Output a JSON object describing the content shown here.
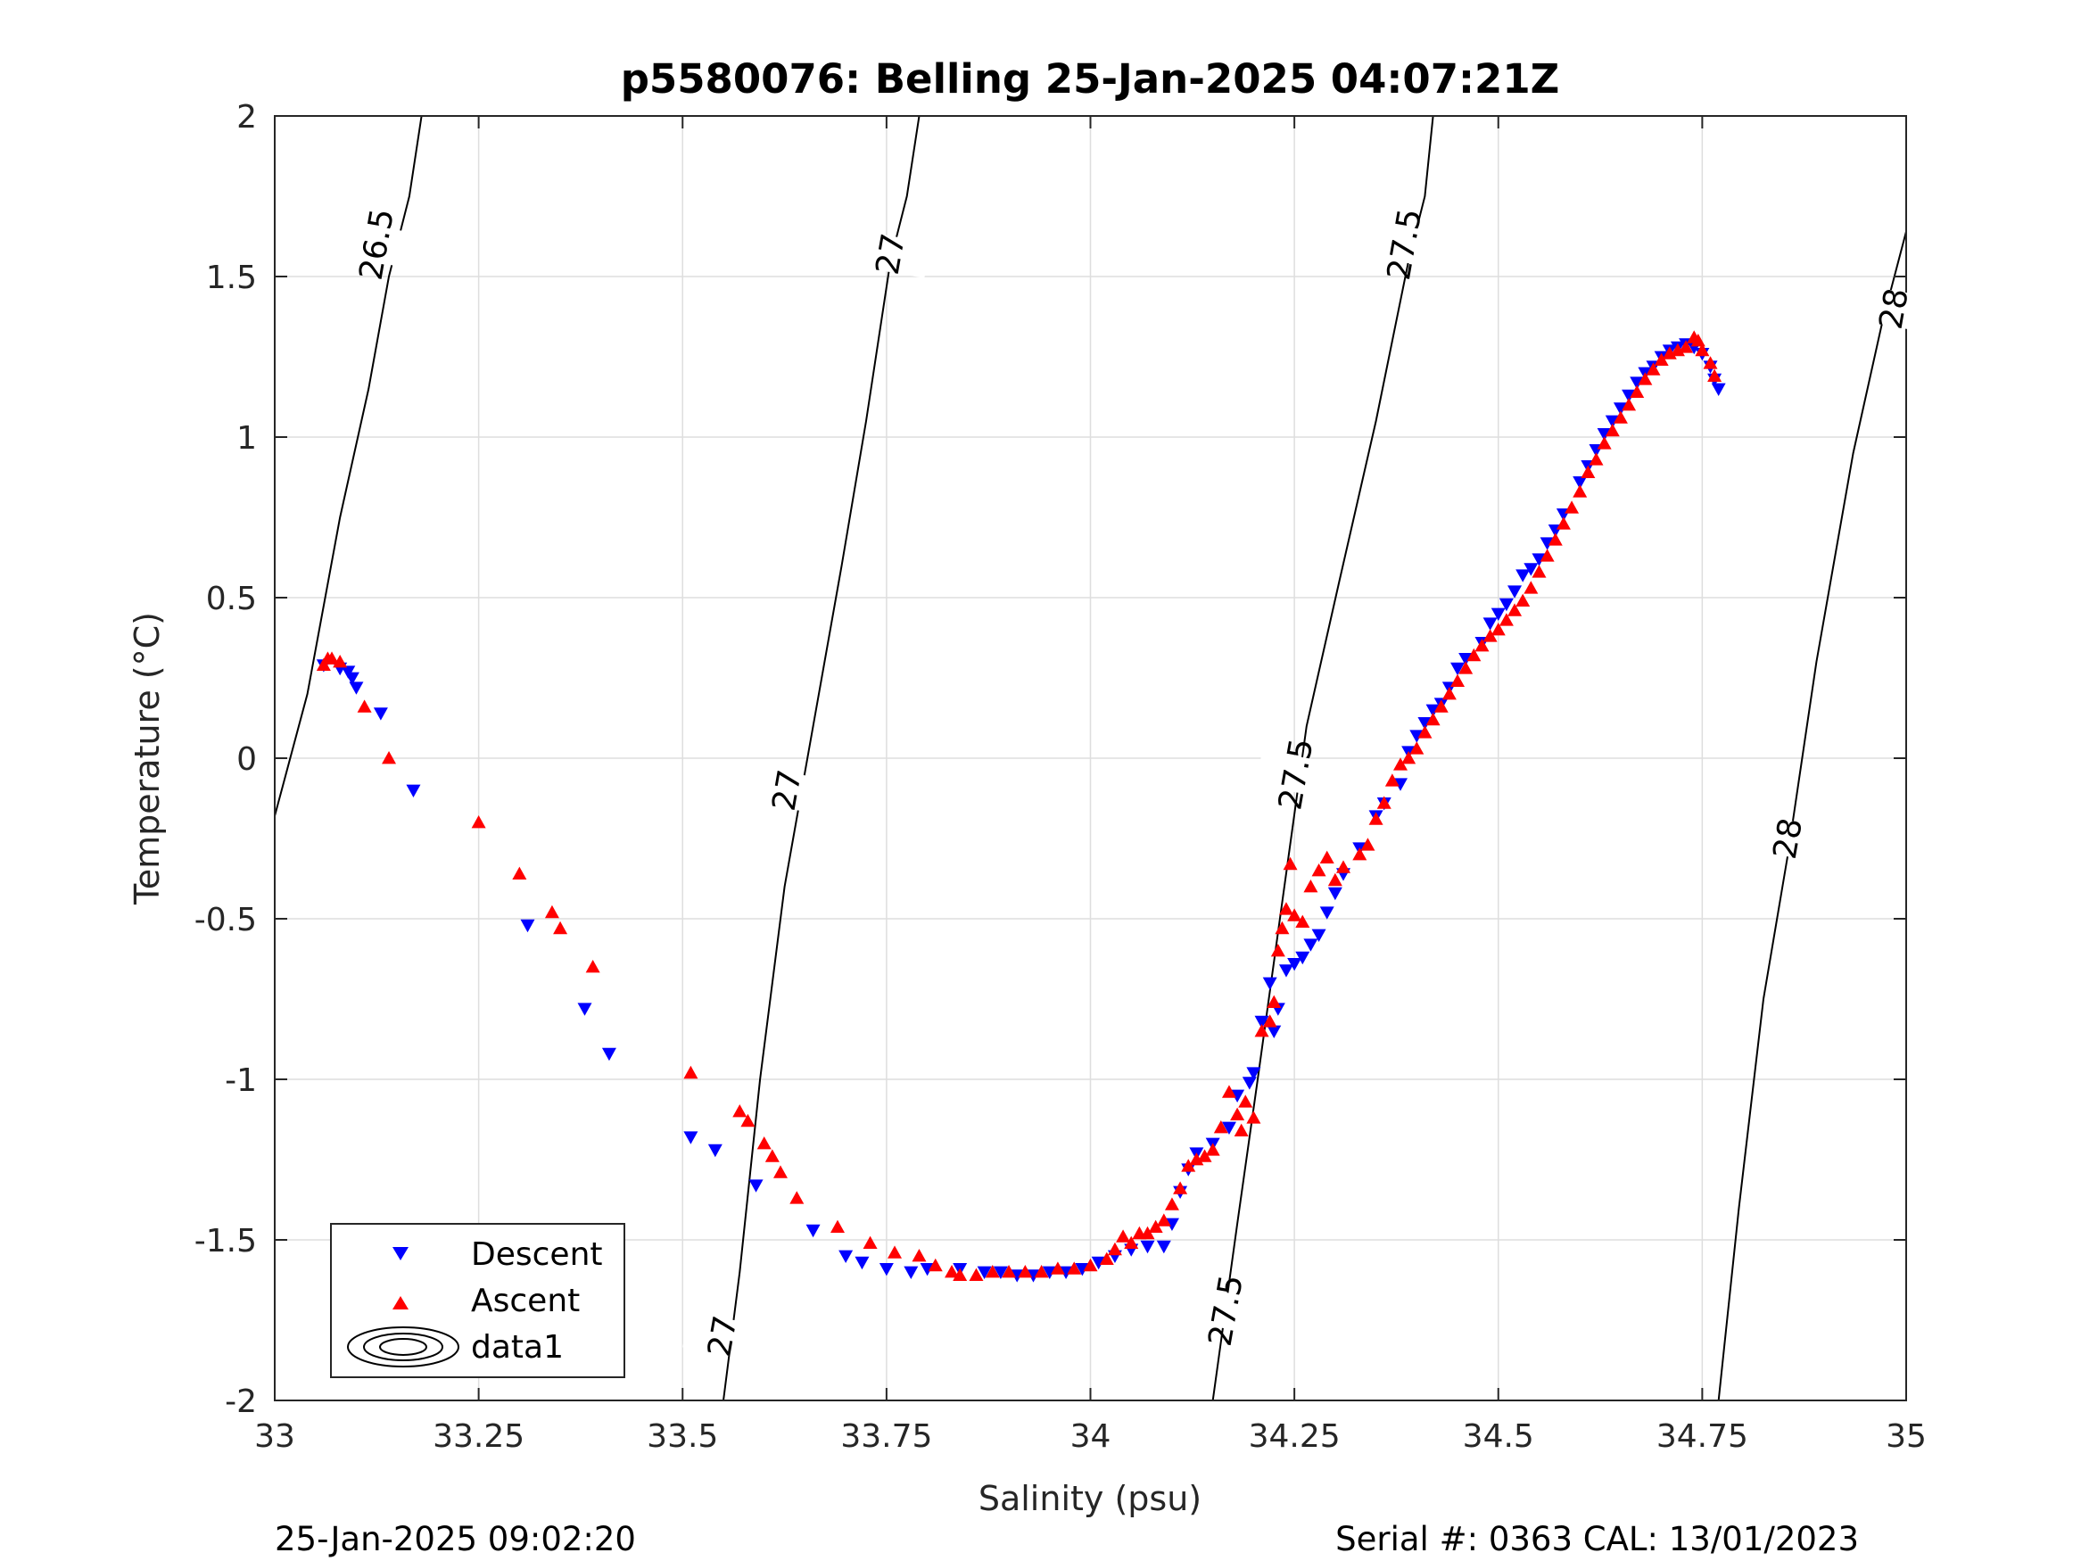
{
  "chart_data": {
    "type": "scatter",
    "title": "p5580076: Belling 25-Jan-2025 04:07:21Z",
    "xlabel": "Salinity (psu)",
    "ylabel": "Temperature (°C)",
    "xlim": [
      33,
      35
    ],
    "ylim": [
      -2,
      2
    ],
    "xticks": [
      33,
      33.25,
      33.5,
      33.75,
      34,
      34.25,
      34.5,
      34.75,
      35
    ],
    "xtick_labels": [
      "33",
      "33.25",
      "33.5",
      "33.75",
      "34",
      "34.25",
      "34.5",
      "34.75",
      "35"
    ],
    "yticks": [
      -2,
      -1.5,
      -1,
      -0.5,
      0,
      0.5,
      1,
      1.5,
      2
    ],
    "ytick_labels": [
      "-2",
      "-1.5",
      "-1",
      "-0.5",
      "0",
      "0.5",
      "1",
      "1.5",
      "2"
    ],
    "grid": true,
    "legend_position": "bottom-left",
    "contours": [
      {
        "level": "26.5",
        "points": [
          [
            33.0,
            -0.18
          ],
          [
            33.04,
            0.2
          ],
          [
            33.08,
            0.75
          ],
          [
            33.115,
            1.15
          ],
          [
            33.14,
            1.5
          ],
          [
            33.165,
            1.75
          ],
          [
            33.18,
            2.0
          ]
        ]
      },
      {
        "level": "27",
        "points": [
          [
            33.55,
            -2.0
          ],
          [
            33.57,
            -1.6
          ],
          [
            33.595,
            -1.0
          ],
          [
            33.625,
            -0.4
          ],
          [
            33.66,
            0.1
          ],
          [
            33.695,
            0.6
          ],
          [
            33.725,
            1.05
          ],
          [
            33.755,
            1.55
          ],
          [
            33.775,
            1.75
          ],
          [
            33.79,
            2.0
          ]
        ]
      },
      {
        "level": "27.5",
        "points": [
          [
            34.15,
            -2.0
          ],
          [
            34.18,
            -1.45
          ],
          [
            34.205,
            -1.0
          ],
          [
            34.235,
            -0.45
          ],
          [
            34.265,
            0.1
          ],
          [
            34.305,
            0.55
          ],
          [
            34.35,
            1.05
          ],
          [
            34.39,
            1.55
          ],
          [
            34.41,
            1.75
          ],
          [
            34.42,
            2.0
          ]
        ]
      },
      {
        "level": "28",
        "points": [
          [
            34.77,
            -2.0
          ],
          [
            34.795,
            -1.4
          ],
          [
            34.825,
            -0.75
          ],
          [
            34.855,
            -0.3
          ],
          [
            34.89,
            0.3
          ],
          [
            34.935,
            0.95
          ],
          [
            34.97,
            1.35
          ],
          [
            35.0,
            1.64
          ]
        ]
      }
    ],
    "contour_labels": [
      {
        "text": "26.5",
        "x": 33.125,
        "y": 1.6
      },
      {
        "text": "27",
        "x": 33.755,
        "y": 1.57
      },
      {
        "text": "27",
        "x": 33.628,
        "y": -0.1
      },
      {
        "text": "27",
        "x": 33.549,
        "y": -1.8
      },
      {
        "text": "27.5",
        "x": 34.385,
        "y": 1.6
      },
      {
        "text": "27.5",
        "x": 34.252,
        "y": -0.05
      },
      {
        "text": "27.5",
        "x": 34.166,
        "y": -1.72
      },
      {
        "text": "28",
        "x": 34.985,
        "y": 1.4
      },
      {
        "text": "28",
        "x": 34.855,
        "y": -0.25
      }
    ],
    "series": [
      {
        "name": "Descent",
        "marker": "triangle-down",
        "color": "#0000ff",
        "points": [
          [
            33.06,
            0.29
          ],
          [
            33.08,
            0.28
          ],
          [
            33.09,
            0.27
          ],
          [
            33.095,
            0.25
          ],
          [
            33.1,
            0.22
          ],
          [
            33.13,
            0.14
          ],
          [
            33.17,
            -0.1
          ],
          [
            33.31,
            -0.52
          ],
          [
            33.38,
            -0.78
          ],
          [
            33.41,
            -0.92
          ],
          [
            33.51,
            -1.18
          ],
          [
            33.54,
            -1.22
          ],
          [
            33.59,
            -1.33
          ],
          [
            33.66,
            -1.47
          ],
          [
            33.7,
            -1.55
          ],
          [
            33.72,
            -1.57
          ],
          [
            33.75,
            -1.59
          ],
          [
            33.78,
            -1.6
          ],
          [
            33.8,
            -1.59
          ],
          [
            33.84,
            -1.59
          ],
          [
            33.87,
            -1.6
          ],
          [
            33.89,
            -1.6
          ],
          [
            33.91,
            -1.61
          ],
          [
            33.93,
            -1.61
          ],
          [
            33.95,
            -1.6
          ],
          [
            33.97,
            -1.6
          ],
          [
            33.99,
            -1.59
          ],
          [
            34.01,
            -1.57
          ],
          [
            34.03,
            -1.55
          ],
          [
            34.05,
            -1.53
          ],
          [
            34.07,
            -1.52
          ],
          [
            34.09,
            -1.52
          ],
          [
            34.1,
            -1.45
          ],
          [
            34.11,
            -1.35
          ],
          [
            34.12,
            -1.28
          ],
          [
            34.13,
            -1.23
          ],
          [
            34.15,
            -1.2
          ],
          [
            34.17,
            -1.15
          ],
          [
            34.18,
            -1.05
          ],
          [
            34.195,
            -1.01
          ],
          [
            34.2,
            -0.98
          ],
          [
            34.21,
            -0.82
          ],
          [
            34.22,
            -0.7
          ],
          [
            34.225,
            -0.85
          ],
          [
            34.23,
            -0.78
          ],
          [
            34.24,
            -0.66
          ],
          [
            34.25,
            -0.64
          ],
          [
            34.26,
            -0.62
          ],
          [
            34.27,
            -0.58
          ],
          [
            34.28,
            -0.55
          ],
          [
            34.29,
            -0.48
          ],
          [
            34.3,
            -0.42
          ],
          [
            34.31,
            -0.36
          ],
          [
            34.33,
            -0.28
          ],
          [
            34.35,
            -0.18
          ],
          [
            34.36,
            -0.14
          ],
          [
            34.38,
            -0.08
          ],
          [
            34.39,
            0.02
          ],
          [
            34.4,
            0.07
          ],
          [
            34.41,
            0.11
          ],
          [
            34.42,
            0.15
          ],
          [
            34.43,
            0.17
          ],
          [
            34.44,
            0.22
          ],
          [
            34.45,
            0.28
          ],
          [
            34.46,
            0.31
          ],
          [
            34.48,
            0.36
          ],
          [
            34.49,
            0.42
          ],
          [
            34.5,
            0.45
          ],
          [
            34.51,
            0.48
          ],
          [
            34.52,
            0.52
          ],
          [
            34.53,
            0.57
          ],
          [
            34.54,
            0.59
          ],
          [
            34.55,
            0.62
          ],
          [
            34.56,
            0.67
          ],
          [
            34.57,
            0.71
          ],
          [
            34.58,
            0.76
          ],
          [
            34.6,
            0.86
          ],
          [
            34.61,
            0.91
          ],
          [
            34.62,
            0.96
          ],
          [
            34.63,
            1.01
          ],
          [
            34.64,
            1.05
          ],
          [
            34.65,
            1.09
          ],
          [
            34.66,
            1.13
          ],
          [
            34.67,
            1.17
          ],
          [
            34.68,
            1.2
          ],
          [
            34.69,
            1.22
          ],
          [
            34.7,
            1.25
          ],
          [
            34.71,
            1.27
          ],
          [
            34.72,
            1.28
          ],
          [
            34.73,
            1.29
          ],
          [
            34.74,
            1.28
          ],
          [
            34.75,
            1.26
          ],
          [
            34.76,
            1.22
          ],
          [
            34.765,
            1.18
          ],
          [
            34.77,
            1.15
          ]
        ]
      },
      {
        "name": "Ascent",
        "marker": "triangle-up",
        "color": "#ff0000",
        "points": [
          [
            33.06,
            0.29
          ],
          [
            33.065,
            0.31
          ],
          [
            33.07,
            0.31
          ],
          [
            33.08,
            0.3
          ],
          [
            33.11,
            0.16
          ],
          [
            33.14,
            0.0
          ],
          [
            33.25,
            -0.2
          ],
          [
            33.3,
            -0.36
          ],
          [
            33.34,
            -0.48
          ],
          [
            33.35,
            -0.53
          ],
          [
            33.39,
            -0.65
          ],
          [
            33.51,
            -0.98
          ],
          [
            33.57,
            -1.1
          ],
          [
            33.58,
            -1.13
          ],
          [
            33.6,
            -1.2
          ],
          [
            33.61,
            -1.24
          ],
          [
            33.62,
            -1.29
          ],
          [
            33.64,
            -1.37
          ],
          [
            33.69,
            -1.46
          ],
          [
            33.73,
            -1.51
          ],
          [
            33.76,
            -1.54
          ],
          [
            33.79,
            -1.55
          ],
          [
            33.81,
            -1.58
          ],
          [
            33.83,
            -1.6
          ],
          [
            33.84,
            -1.61
          ],
          [
            33.86,
            -1.61
          ],
          [
            33.88,
            -1.6
          ],
          [
            33.9,
            -1.6
          ],
          [
            33.92,
            -1.6
          ],
          [
            33.94,
            -1.6
          ],
          [
            33.96,
            -1.59
          ],
          [
            33.98,
            -1.59
          ],
          [
            34.0,
            -1.58
          ],
          [
            34.02,
            -1.56
          ],
          [
            34.03,
            -1.53
          ],
          [
            34.04,
            -1.49
          ],
          [
            34.05,
            -1.51
          ],
          [
            34.06,
            -1.48
          ],
          [
            34.07,
            -1.48
          ],
          [
            34.08,
            -1.46
          ],
          [
            34.09,
            -1.44
          ],
          [
            34.1,
            -1.39
          ],
          [
            34.11,
            -1.34
          ],
          [
            34.12,
            -1.27
          ],
          [
            34.13,
            -1.25
          ],
          [
            34.14,
            -1.24
          ],
          [
            34.15,
            -1.22
          ],
          [
            34.16,
            -1.15
          ],
          [
            34.17,
            -1.04
          ],
          [
            34.18,
            -1.11
          ],
          [
            34.185,
            -1.16
          ],
          [
            34.19,
            -1.07
          ],
          [
            34.2,
            -1.12
          ],
          [
            34.21,
            -0.85
          ],
          [
            34.22,
            -0.82
          ],
          [
            34.225,
            -0.76
          ],
          [
            34.23,
            -0.6
          ],
          [
            34.235,
            -0.53
          ],
          [
            34.24,
            -0.47
          ],
          [
            34.245,
            -0.33
          ],
          [
            34.25,
            -0.49
          ],
          [
            34.26,
            -0.51
          ],
          [
            34.27,
            -0.4
          ],
          [
            34.28,
            -0.35
          ],
          [
            34.29,
            -0.31
          ],
          [
            34.3,
            -0.38
          ],
          [
            34.31,
            -0.34
          ],
          [
            34.33,
            -0.3
          ],
          [
            34.34,
            -0.27
          ],
          [
            34.35,
            -0.19
          ],
          [
            34.36,
            -0.14
          ],
          [
            34.37,
            -0.07
          ],
          [
            34.38,
            -0.02
          ],
          [
            34.39,
            0.0
          ],
          [
            34.4,
            0.03
          ],
          [
            34.41,
            0.08
          ],
          [
            34.42,
            0.12
          ],
          [
            34.43,
            0.16
          ],
          [
            34.44,
            0.2
          ],
          [
            34.45,
            0.24
          ],
          [
            34.46,
            0.28
          ],
          [
            34.47,
            0.32
          ],
          [
            34.48,
            0.35
          ],
          [
            34.49,
            0.38
          ],
          [
            34.5,
            0.4
          ],
          [
            34.51,
            0.43
          ],
          [
            34.52,
            0.46
          ],
          [
            34.53,
            0.49
          ],
          [
            34.54,
            0.53
          ],
          [
            34.55,
            0.58
          ],
          [
            34.56,
            0.63
          ],
          [
            34.57,
            0.68
          ],
          [
            34.58,
            0.73
          ],
          [
            34.59,
            0.78
          ],
          [
            34.6,
            0.83
          ],
          [
            34.61,
            0.89
          ],
          [
            34.62,
            0.93
          ],
          [
            34.63,
            0.98
          ],
          [
            34.64,
            1.02
          ],
          [
            34.65,
            1.06
          ],
          [
            34.66,
            1.1
          ],
          [
            34.67,
            1.14
          ],
          [
            34.68,
            1.18
          ],
          [
            34.69,
            1.21
          ],
          [
            34.7,
            1.24
          ],
          [
            34.71,
            1.26
          ],
          [
            34.72,
            1.27
          ],
          [
            34.73,
            1.28
          ],
          [
            34.74,
            1.31
          ],
          [
            34.745,
            1.3
          ],
          [
            34.75,
            1.27
          ],
          [
            34.76,
            1.23
          ],
          [
            34.765,
            1.19
          ]
        ]
      },
      {
        "name": "data1",
        "marker": "contour",
        "color": "#000000",
        "points": []
      }
    ]
  },
  "footer": {
    "date": "25-Jan-2025 09:02:20",
    "serial": "Serial #: 0363  CAL: 13/01/2023"
  }
}
